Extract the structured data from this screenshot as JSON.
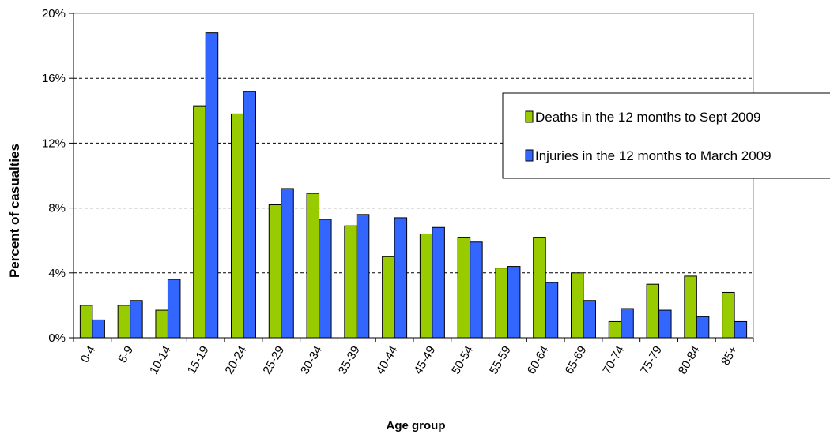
{
  "chart_data": {
    "type": "bar",
    "xlabel": "Age group",
    "ylabel": "Percent of casualties",
    "ylim": [
      0,
      20
    ],
    "y_ticks": [
      0,
      4,
      8,
      12,
      16,
      20
    ],
    "y_tick_labels": [
      "0%",
      "4%",
      "8%",
      "12%",
      "16%",
      "20%"
    ],
    "grid": "horizontal dashed",
    "legend_position": "right",
    "categories": [
      "0-4",
      "5-9",
      "10-14",
      "15-19",
      "20-24",
      "25-29",
      "30-34",
      "35-39",
      "40-44",
      "45-49",
      "50-54",
      "55-59",
      "60-64",
      "65-69",
      "70-74",
      "75-79",
      "80-84",
      "85+"
    ],
    "series": [
      {
        "name": "Deaths in the 12 months to Sept 2009",
        "color": "#99cc00",
        "values": [
          2.0,
          2.0,
          1.7,
          14.3,
          13.8,
          8.2,
          8.9,
          6.9,
          5.0,
          6.4,
          6.2,
          4.3,
          6.2,
          4.0,
          1.0,
          3.3,
          3.8,
          2.8
        ]
      },
      {
        "name": "Injuries in the 12 months to March 2009",
        "color": "#3366ff",
        "values": [
          1.1,
          2.3,
          3.6,
          18.8,
          15.2,
          9.2,
          7.3,
          7.6,
          7.4,
          6.8,
          5.9,
          4.4,
          3.4,
          2.3,
          1.8,
          1.7,
          1.3,
          1.0
        ]
      }
    ]
  }
}
